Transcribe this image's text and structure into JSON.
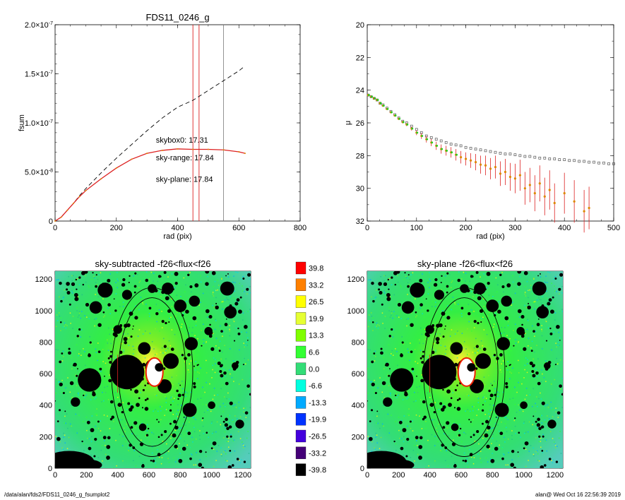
{
  "footer": {
    "left": "/data/alan/fds2/FDS11_0246_g_fsumplot2",
    "right": "alan@  Wed Oct 16 22:56:39 2019"
  },
  "colors": {
    "red": "#dd2222",
    "orange": "#dd8800",
    "green": "#22cc22",
    "gray": "#888888",
    "colorbar": [
      "#ff0000",
      "#ff8000",
      "#ffff00",
      "#e6ff33",
      "#80ff00",
      "#33ff33",
      "#33dd77",
      "#00ffe0",
      "#00aaff",
      "#0033ff",
      "#4400dd",
      "#440077",
      "#000000"
    ]
  },
  "chart_data": [
    {
      "id": "fsum",
      "type": "line",
      "title": "FDS11_0246_g",
      "xlabel": "rad (pix)",
      "ylabel": "fsum",
      "xlim": [
        0,
        800
      ],
      "ylim": [
        0,
        2e-07
      ],
      "xticks": [
        0,
        200,
        400,
        600,
        800
      ],
      "xticklabels": [
        "0",
        "200",
        "400",
        "600",
        "800"
      ],
      "yticks": [
        0,
        5e-08,
        1e-07,
        1.5e-07,
        2e-07
      ],
      "yticklabels": [
        {
          "m": "0",
          "e": ""
        },
        {
          "m": "5.0×10",
          "e": "-8"
        },
        {
          "m": "1.0×10",
          "e": "-7"
        },
        {
          "m": "1.5×10",
          "e": "-7"
        },
        {
          "m": "2.0×10",
          "e": "-7"
        }
      ],
      "vlines": [
        {
          "x": 450,
          "color": "#dd2222"
        },
        {
          "x": 470,
          "color": "#dd2222"
        },
        {
          "x": 550,
          "color": "#888888"
        }
      ],
      "annotations": [
        {
          "text": "skybox0: 17.31",
          "color": "#000000",
          "x": 260,
          "y": 8e-08
        },
        {
          "text": "sky-range: 17.84",
          "color": "#dd2222",
          "x": 260,
          "y": 6.2e-08
        },
        {
          "text": "sky-plane: 17.84",
          "color": "#22cc22",
          "x": 260,
          "y": 4e-08
        }
      ],
      "series": [
        {
          "style": "dashed",
          "color": "#000000",
          "x": [
            0,
            20,
            40,
            60,
            80,
            100,
            150,
            200,
            250,
            300,
            350,
            400,
            450,
            500,
            550,
            600,
            620
          ],
          "y": [
            0,
            4e-09,
            1.1e-08,
            1.8e-08,
            2.6e-08,
            3.3e-08,
            4.9e-08,
            6.4e-08,
            7.8e-08,
            9.2e-08,
            1.05e-07,
            1.16e-07,
            1.23e-07,
            1.33e-07,
            1.43e-07,
            1.53e-07,
            1.58e-07
          ]
        },
        {
          "style": "solid",
          "color": "#dd2222",
          "x": [
            0,
            20,
            40,
            60,
            80,
            100,
            150,
            200,
            250,
            300,
            350,
            400,
            450,
            500,
            550,
            600,
            620
          ],
          "y": [
            0,
            4e-09,
            1.1e-08,
            1.8e-08,
            2.5e-08,
            3.1e-08,
            4.3e-08,
            5.4e-08,
            6.3e-08,
            6.9e-08,
            7.2e-08,
            7.35e-08,
            7.3e-08,
            7.3e-08,
            7.25e-08,
            7.05e-08,
            6.9e-08
          ]
        }
      ]
    },
    {
      "id": "mu",
      "type": "scatter",
      "title": "",
      "xlabel": "rad (pix)",
      "ylabel": "μ",
      "xlim": [
        0,
        500
      ],
      "ylim": [
        32,
        20
      ],
      "xticks": [
        0,
        100,
        200,
        300,
        400,
        500
      ],
      "xticklabels": [
        "0",
        "100",
        "200",
        "300",
        "400",
        "500"
      ],
      "yticks": [
        20,
        22,
        24,
        26,
        28,
        30,
        32
      ],
      "yticklabels": [
        "20",
        "22",
        "24",
        "26",
        "28",
        "30",
        "32"
      ],
      "series": [
        {
          "marker": "square-open",
          "color": "#555555",
          "x": [
            2,
            8,
            14,
            20,
            26,
            32,
            40,
            48,
            56,
            64,
            72,
            80,
            90,
            100,
            110,
            120,
            130,
            140,
            150,
            160,
            170,
            180,
            190,
            200,
            210,
            220,
            230,
            240,
            250,
            260,
            270,
            280,
            290,
            300,
            310,
            320,
            330,
            340,
            350,
            360,
            370,
            380,
            390,
            400,
            410,
            420,
            430,
            440,
            450,
            460,
            470,
            480,
            490,
            500
          ],
          "y": [
            24.3,
            24.4,
            24.5,
            24.6,
            24.8,
            24.9,
            25.1,
            25.3,
            25.5,
            25.7,
            25.9,
            26.0,
            26.2,
            26.4,
            26.6,
            26.8,
            26.9,
            27.0,
            27.1,
            27.2,
            27.3,
            27.35,
            27.4,
            27.5,
            27.55,
            27.6,
            27.65,
            27.7,
            27.75,
            27.8,
            27.85,
            27.9,
            27.9,
            27.95,
            28.0,
            28.05,
            28.05,
            28.1,
            28.15,
            28.15,
            28.2,
            28.2,
            28.25,
            28.25,
            28.3,
            28.3,
            28.35,
            28.35,
            28.4,
            28.4,
            28.45,
            28.45,
            28.5,
            28.5
          ]
        },
        {
          "marker": "dot-err",
          "color": "#dd2222",
          "x": [
            2,
            8,
            14,
            20,
            26,
            32,
            40,
            48,
            56,
            64,
            72,
            80,
            90,
            100,
            110,
            120,
            130,
            140,
            150,
            160,
            170,
            180,
            190,
            200,
            210,
            220,
            230,
            240,
            250,
            260,
            270,
            280,
            290,
            300,
            310,
            320,
            330,
            340,
            350,
            360,
            370,
            380,
            400,
            420,
            440,
            450
          ],
          "y": [
            24.3,
            24.4,
            24.5,
            24.6,
            24.8,
            24.95,
            25.15,
            25.35,
            25.55,
            25.75,
            25.95,
            26.1,
            26.35,
            26.6,
            26.8,
            27.0,
            27.2,
            27.4,
            27.6,
            27.7,
            27.8,
            27.95,
            28.1,
            28.2,
            28.3,
            28.4,
            28.55,
            28.6,
            28.8,
            28.7,
            29.1,
            29.0,
            29.3,
            29.4,
            29.2,
            30.0,
            29.8,
            30.3,
            29.7,
            30.5,
            30.1,
            30.9,
            30.3,
            30.8,
            31.4,
            31.2
          ],
          "err": [
            0.02,
            0.02,
            0.02,
            0.03,
            0.03,
            0.03,
            0.04,
            0.05,
            0.06,
            0.07,
            0.08,
            0.1,
            0.12,
            0.15,
            0.18,
            0.2,
            0.22,
            0.25,
            0.28,
            0.3,
            0.32,
            0.35,
            0.38,
            0.4,
            0.45,
            0.5,
            0.55,
            0.6,
            0.65,
            0.7,
            0.75,
            0.8,
            0.85,
            0.9,
            0.95,
            1.0,
            1.05,
            1.1,
            1.1,
            1.15,
            1.2,
            1.2,
            1.25,
            1.3,
            1.3,
            1.3
          ]
        },
        {
          "marker": "dot",
          "color": "#22cc22",
          "x": [
            2,
            8,
            14,
            20,
            26,
            32,
            40,
            48,
            56,
            64,
            72,
            80,
            90,
            100,
            110,
            120,
            130,
            140,
            150,
            160,
            170,
            180
          ],
          "y": [
            24.3,
            24.4,
            24.5,
            24.6,
            24.8,
            24.95,
            25.15,
            25.35,
            25.55,
            25.75,
            25.95,
            26.1,
            26.35,
            26.6,
            26.8,
            27.0,
            27.2,
            27.4,
            27.6,
            27.7,
            27.8,
            27.95
          ]
        }
      ]
    },
    {
      "id": "img1",
      "type": "heatmap",
      "title": "sky-subtracted -f26<flux<f26",
      "xlim": [
        0,
        1250
      ],
      "ylim": [
        0,
        1250
      ],
      "xticks": [
        0,
        200,
        400,
        600,
        800,
        1000,
        1200
      ],
      "xticklabels": [
        "0",
        "200",
        "400",
        "600",
        "800",
        "1000",
        "1200"
      ],
      "yticks": [
        0,
        200,
        400,
        600,
        800,
        1000,
        1200
      ],
      "yticklabels": [
        "0",
        "200",
        "400",
        "600",
        "800",
        "1000",
        "1200"
      ],
      "ellipses": [
        {
          "cx": 620,
          "cy": 610,
          "rx": 260,
          "ry": 540
        },
        {
          "cx": 620,
          "cy": 610,
          "rx": 215,
          "ry": 475
        }
      ],
      "masks": [
        {
          "x": 460,
          "y": 610,
          "r": 110
        },
        {
          "x": 220,
          "y": 560,
          "r": 75
        },
        {
          "x": 630,
          "y": 640,
          "r": 55
        },
        {
          "x": 700,
          "y": 520,
          "r": 45
        },
        {
          "x": 740,
          "y": 680,
          "r": 50
        },
        {
          "x": 870,
          "y": 790,
          "r": 42
        },
        {
          "x": 860,
          "y": 370,
          "r": 45
        },
        {
          "x": 320,
          "y": 1130,
          "r": 48
        },
        {
          "x": 1100,
          "y": 1140,
          "r": 45
        },
        {
          "x": 1120,
          "y": 990,
          "r": 40
        },
        {
          "x": 800,
          "y": 1030,
          "r": 40
        },
        {
          "x": 260,
          "y": 1020,
          "r": 40
        },
        {
          "x": 720,
          "y": 1140,
          "r": 38
        },
        {
          "x": 890,
          "y": 1060,
          "r": 35
        },
        {
          "x": 570,
          "y": 760,
          "r": 40
        },
        {
          "x": 460,
          "y": 1100,
          "r": 32
        },
        {
          "x": 620,
          "y": 1140,
          "r": 28
        },
        {
          "x": 130,
          "y": 420,
          "r": 30
        },
        {
          "x": 1180,
          "y": 280,
          "r": 28
        },
        {
          "x": 980,
          "y": 870,
          "r": 26
        },
        {
          "x": 400,
          "y": 880,
          "r": 28
        },
        {
          "x": 560,
          "y": 260,
          "r": 24
        },
        {
          "x": 1000,
          "y": 400,
          "r": 24
        },
        {
          "x": 1150,
          "y": 650,
          "r": 22
        }
      ],
      "blobs": [
        {
          "x": 90,
          "y": 40,
          "rx": 160,
          "ry": 70
        },
        {
          "x": 180,
          "y": 20,
          "rx": 120,
          "ry": 40
        }
      ]
    },
    {
      "id": "img2",
      "type": "heatmap",
      "title": "sky-plane -f26<flux<f26",
      "xlim": [
        0,
        1250
      ],
      "ylim": [
        0,
        1250
      ],
      "xticks": [
        0,
        200,
        400,
        600,
        800,
        1000,
        1200
      ],
      "xticklabels": [
        "0",
        "200",
        "400",
        "600",
        "800",
        "1000",
        "1200"
      ],
      "yticks": [
        0,
        200,
        400,
        600,
        800,
        1000,
        1200
      ],
      "yticklabels": [
        "0",
        "200",
        "400",
        "600",
        "800",
        "1000",
        "1200"
      ],
      "ellipses": [
        {
          "cx": 620,
          "cy": 610,
          "rx": 260,
          "ry": 540
        },
        {
          "cx": 620,
          "cy": 610,
          "rx": 215,
          "ry": 475
        }
      ],
      "masks": [
        {
          "x": 460,
          "y": 610,
          "r": 110
        },
        {
          "x": 220,
          "y": 560,
          "r": 75
        },
        {
          "x": 630,
          "y": 640,
          "r": 55
        },
        {
          "x": 700,
          "y": 520,
          "r": 45
        },
        {
          "x": 740,
          "y": 680,
          "r": 50
        },
        {
          "x": 870,
          "y": 790,
          "r": 42
        },
        {
          "x": 860,
          "y": 370,
          "r": 45
        },
        {
          "x": 320,
          "y": 1130,
          "r": 48
        },
        {
          "x": 1100,
          "y": 1140,
          "r": 45
        },
        {
          "x": 1120,
          "y": 990,
          "r": 40
        },
        {
          "x": 800,
          "y": 1030,
          "r": 40
        },
        {
          "x": 260,
          "y": 1020,
          "r": 40
        },
        {
          "x": 720,
          "y": 1140,
          "r": 38
        },
        {
          "x": 890,
          "y": 1060,
          "r": 35
        },
        {
          "x": 570,
          "y": 760,
          "r": 40
        },
        {
          "x": 460,
          "y": 1100,
          "r": 32
        },
        {
          "x": 620,
          "y": 1140,
          "r": 28
        },
        {
          "x": 130,
          "y": 420,
          "r": 30
        },
        {
          "x": 1180,
          "y": 280,
          "r": 28
        },
        {
          "x": 980,
          "y": 870,
          "r": 26
        },
        {
          "x": 400,
          "y": 880,
          "r": 28
        },
        {
          "x": 560,
          "y": 260,
          "r": 24
        },
        {
          "x": 1000,
          "y": 400,
          "r": 24
        },
        {
          "x": 1150,
          "y": 650,
          "r": 22
        }
      ],
      "blobs": [
        {
          "x": 90,
          "y": 40,
          "rx": 160,
          "ry": 70
        },
        {
          "x": 180,
          "y": 20,
          "rx": 120,
          "ry": 40
        }
      ]
    },
    {
      "id": "colorbar",
      "type": "table",
      "labels": [
        "39.8",
        "33.2",
        "26.5",
        "19.9",
        "13.3",
        "6.6",
        "0.0",
        "-6.6",
        "-13.3",
        "-19.9",
        "-26.5",
        "-33.2",
        "-39.8"
      ]
    }
  ]
}
